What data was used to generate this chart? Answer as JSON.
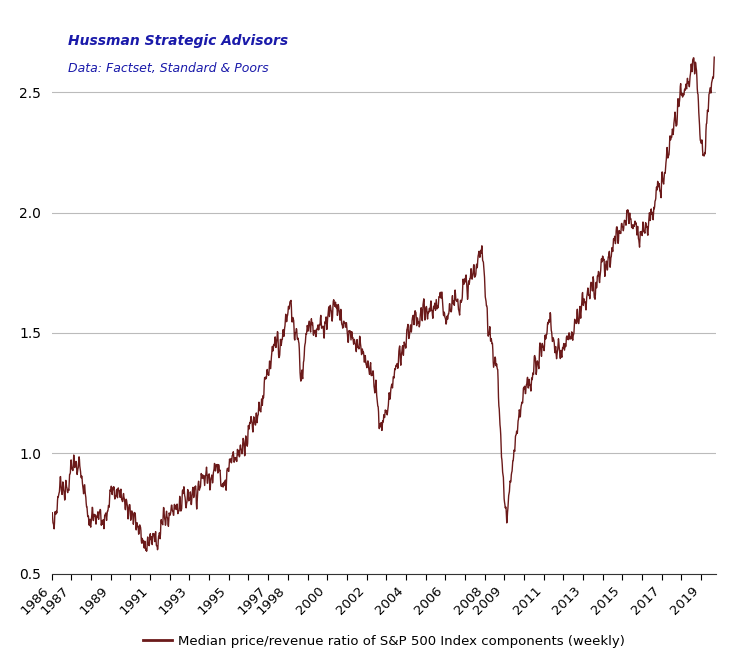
{
  "line_color": "#6B1A1A",
  "background_color": "#ffffff",
  "title_line1": "Hussman Strategic Advisors",
  "title_line2": "Data: Factset, Standard & Poors",
  "ylim": [
    0.5,
    2.8
  ],
  "yticks": [
    0.5,
    1.0,
    1.5,
    2.0,
    2.5
  ],
  "legend_label": "Median price/revenue ratio of S&P 500 Index components (weekly)",
  "line_width": 1.0,
  "title_color": "#1a1aaa",
  "subtitle_color": "#1a1aaa",
  "grid_color": "#bbbbbb",
  "visible_years": [
    1986,
    1987,
    1989,
    1991,
    1993,
    1995,
    1997,
    1998,
    2000,
    2002,
    2004,
    2006,
    2008,
    2009,
    2011,
    2013,
    2015,
    2017,
    2019
  ],
  "control_points": [
    [
      1986.0,
      0.72
    ],
    [
      1986.2,
      0.75
    ],
    [
      1986.5,
      0.88
    ],
    [
      1986.8,
      0.85
    ],
    [
      1987.0,
      0.93
    ],
    [
      1987.2,
      0.97
    ],
    [
      1987.5,
      0.9
    ],
    [
      1987.75,
      0.78
    ],
    [
      1987.85,
      0.72
    ],
    [
      1988.0,
      0.72
    ],
    [
      1988.3,
      0.73
    ],
    [
      1988.6,
      0.75
    ],
    [
      1989.0,
      0.82
    ],
    [
      1989.3,
      0.84
    ],
    [
      1989.6,
      0.82
    ],
    [
      1989.9,
      0.78
    ],
    [
      1990.2,
      0.73
    ],
    [
      1990.5,
      0.66
    ],
    [
      1990.8,
      0.62
    ],
    [
      1991.0,
      0.63
    ],
    [
      1991.3,
      0.65
    ],
    [
      1991.6,
      0.7
    ],
    [
      1992.0,
      0.75
    ],
    [
      1992.5,
      0.8
    ],
    [
      1993.0,
      0.83
    ],
    [
      1993.5,
      0.87
    ],
    [
      1994.0,
      0.92
    ],
    [
      1994.3,
      0.94
    ],
    [
      1994.6,
      0.9
    ],
    [
      1994.9,
      0.91
    ],
    [
      1995.0,
      0.95
    ],
    [
      1995.3,
      0.98
    ],
    [
      1995.6,
      1.02
    ],
    [
      1996.0,
      1.1
    ],
    [
      1996.5,
      1.18
    ],
    [
      1997.0,
      1.32
    ],
    [
      1997.3,
      1.42
    ],
    [
      1997.5,
      1.47
    ],
    [
      1997.65,
      1.43
    ],
    [
      1997.8,
      1.5
    ],
    [
      1998.0,
      1.58
    ],
    [
      1998.15,
      1.62
    ],
    [
      1998.2,
      1.6
    ],
    [
      1998.35,
      1.5
    ],
    [
      1998.5,
      1.47
    ],
    [
      1998.6,
      1.38
    ],
    [
      1998.7,
      1.32
    ],
    [
      1998.8,
      1.4
    ],
    [
      1998.9,
      1.5
    ],
    [
      1999.0,
      1.54
    ],
    [
      1999.2,
      1.55
    ],
    [
      1999.5,
      1.5
    ],
    [
      1999.7,
      1.52
    ],
    [
      1999.9,
      1.55
    ],
    [
      2000.0,
      1.58
    ],
    [
      2000.2,
      1.6
    ],
    [
      2000.4,
      1.62
    ],
    [
      2000.6,
      1.58
    ],
    [
      2000.8,
      1.55
    ],
    [
      2001.0,
      1.52
    ],
    [
      2001.3,
      1.48
    ],
    [
      2001.6,
      1.45
    ],
    [
      2001.9,
      1.42
    ],
    [
      2002.0,
      1.38
    ],
    [
      2002.2,
      1.32
    ],
    [
      2002.4,
      1.28
    ],
    [
      2002.6,
      1.18
    ],
    [
      2002.8,
      1.13
    ],
    [
      2002.9,
      1.14
    ],
    [
      2003.0,
      1.18
    ],
    [
      2003.3,
      1.28
    ],
    [
      2003.6,
      1.38
    ],
    [
      2004.0,
      1.45
    ],
    [
      2004.3,
      1.52
    ],
    [
      2004.6,
      1.55
    ],
    [
      2005.0,
      1.57
    ],
    [
      2005.3,
      1.6
    ],
    [
      2005.6,
      1.62
    ],
    [
      2006.0,
      1.6
    ],
    [
      2006.3,
      1.62
    ],
    [
      2006.6,
      1.65
    ],
    [
      2007.0,
      1.68
    ],
    [
      2007.3,
      1.72
    ],
    [
      2007.6,
      1.78
    ],
    [
      2007.8,
      1.82
    ],
    [
      2007.9,
      1.8
    ],
    [
      2008.0,
      1.7
    ],
    [
      2008.15,
      1.58
    ],
    [
      2008.2,
      1.55
    ],
    [
      2008.3,
      1.5
    ],
    [
      2008.4,
      1.45
    ],
    [
      2008.5,
      1.4
    ],
    [
      2008.6,
      1.35
    ],
    [
      2008.7,
      1.25
    ],
    [
      2008.8,
      1.1
    ],
    [
      2008.9,
      0.95
    ],
    [
      2008.95,
      0.88
    ],
    [
      2009.0,
      0.82
    ],
    [
      2009.1,
      0.75
    ],
    [
      2009.15,
      0.73
    ],
    [
      2009.2,
      0.78
    ],
    [
      2009.3,
      0.88
    ],
    [
      2009.5,
      1.0
    ],
    [
      2009.7,
      1.1
    ],
    [
      2009.9,
      1.2
    ],
    [
      2010.0,
      1.25
    ],
    [
      2010.2,
      1.28
    ],
    [
      2010.4,
      1.32
    ],
    [
      2010.6,
      1.38
    ],
    [
      2010.8,
      1.42
    ],
    [
      2011.0,
      1.45
    ],
    [
      2011.2,
      1.52
    ],
    [
      2011.3,
      1.58
    ],
    [
      2011.5,
      1.45
    ],
    [
      2011.7,
      1.42
    ],
    [
      2011.9,
      1.42
    ],
    [
      2012.0,
      1.45
    ],
    [
      2012.3,
      1.5
    ],
    [
      2012.6,
      1.55
    ],
    [
      2013.0,
      1.6
    ],
    [
      2013.3,
      1.65
    ],
    [
      2013.6,
      1.7
    ],
    [
      2014.0,
      1.75
    ],
    [
      2014.3,
      1.8
    ],
    [
      2014.6,
      1.88
    ],
    [
      2014.9,
      1.94
    ],
    [
      2015.0,
      1.97
    ],
    [
      2015.2,
      2.0
    ],
    [
      2015.4,
      1.98
    ],
    [
      2015.6,
      1.95
    ],
    [
      2015.8,
      1.93
    ],
    [
      2016.0,
      1.9
    ],
    [
      2016.2,
      1.93
    ],
    [
      2016.4,
      1.96
    ],
    [
      2016.6,
      2.03
    ],
    [
      2016.8,
      2.08
    ],
    [
      2017.0,
      2.12
    ],
    [
      2017.2,
      2.2
    ],
    [
      2017.4,
      2.28
    ],
    [
      2017.6,
      2.38
    ],
    [
      2017.8,
      2.45
    ],
    [
      2017.95,
      2.52
    ],
    [
      2018.0,
      2.5
    ],
    [
      2018.1,
      2.48
    ],
    [
      2018.2,
      2.5
    ],
    [
      2018.35,
      2.52
    ],
    [
      2018.5,
      2.58
    ],
    [
      2018.65,
      2.65
    ],
    [
      2018.75,
      2.6
    ],
    [
      2018.85,
      2.5
    ],
    [
      2018.9,
      2.42
    ],
    [
      2018.95,
      2.35
    ],
    [
      2019.0,
      2.32
    ],
    [
      2019.1,
      2.25
    ],
    [
      2019.15,
      2.22
    ],
    [
      2019.25,
      2.35
    ],
    [
      2019.4,
      2.48
    ],
    [
      2019.5,
      2.55
    ],
    [
      2019.6,
      2.6
    ],
    [
      2019.65,
      2.65
    ],
    [
      2019.7,
      2.67
    ]
  ]
}
